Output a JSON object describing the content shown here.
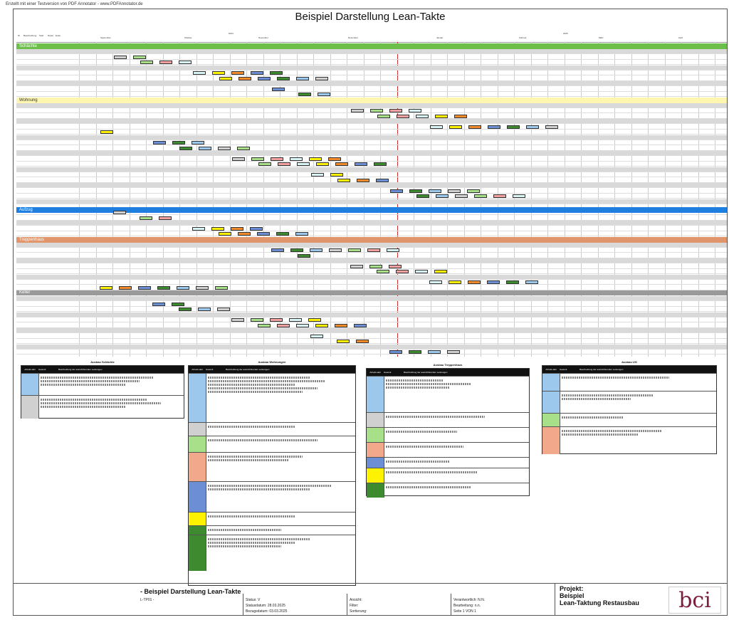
{
  "watermark": "Erstellt mit einer Testversion von PDF Annotator - www.PDFAnnotator.de",
  "title": "Beispiel Darstellung Lean-Takte",
  "columns": [
    "Nr.",
    "Beschreibung",
    "Start",
    "Dauer",
    "Ende"
  ],
  "years": [
    "2024",
    "2025"
  ],
  "months": [
    "September",
    "Oktober",
    "November",
    "Dezember",
    "Januar",
    "Februar",
    "März",
    "April"
  ],
  "sections": [
    {
      "label": "Schächte",
      "color": "#6cc04a"
    },
    {
      "label": "Wohnung",
      "color": "#fff7b0"
    },
    {
      "label": "Aufzug",
      "color": "#1f7fe0"
    },
    {
      "label": "Treppenhaus",
      "color": "#e0956a"
    },
    {
      "label": "Keller",
      "color": "#9a9a9a"
    }
  ],
  "legends": [
    {
      "title": "Ausbau Schächte",
      "h1": "Arbeits-takt",
      "h2": "Gewerk",
      "h3": "Beschreibung der auszuführenden Leistungen"
    },
    {
      "title": "Ausbau Wohnungen",
      "h1": "Arbeits-takt",
      "h2": "Gewerk",
      "h3": "Beschreibung der auszuführenden Leistungen"
    },
    {
      "title": "Ausbau Treppenhaus",
      "h1": "Arbeits-takt",
      "h2": "Gewerk",
      "h3": "Beschreibung der auszuführenden Leistungen"
    },
    {
      "title": "Ausbau UG",
      "h1": "Arbeits-takt",
      "h2": "Gewerk",
      "h3": "Beschreibung der auszuführenden Leistungen"
    }
  ],
  "footer": {
    "plan_title": "- Beispiel Darstellung Lean-Takte",
    "plan_no": "L-TP01 -",
    "status": "Status: V",
    "statusdatum": "Statusdatum: 28.03.2025",
    "bezugsdatum": "Bezugsdatum: 03.03.2025",
    "ansicht": "Ansicht:",
    "filter": "Filter:",
    "sortierung": "Sortierung:",
    "verantwortlich": "Verantwortlich: N.N.",
    "bearbeitung": "Bearbeitung: n.n.",
    "seite": "Seite 1 VON 1",
    "projekt": "Projekt:",
    "projekt_name": "Beispiel",
    "projekt_sub": "Lean-Taktung Restausbau",
    "logo": "bci"
  },
  "colors": {
    "blue": "#9cc8ee",
    "lgreen": "#a8e08a",
    "pink": "#f2a0a0",
    "yellow": "#fff200",
    "orange": "#f08a2a",
    "grey": "#d0d0d0",
    "navy": "#6c8ed4",
    "dgreen": "#3e8a2e",
    "cyan": "#d8f4f4"
  }
}
